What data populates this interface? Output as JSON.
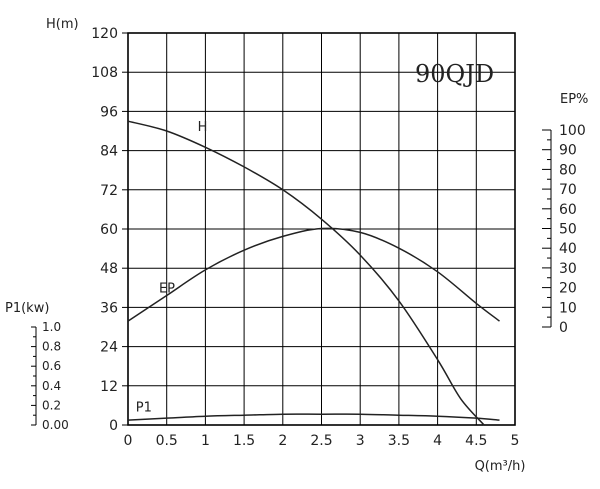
{
  "chart_data": {
    "type": "line",
    "title": "90QJD",
    "xlabel": "Q(m³/h)",
    "x_ticks": [
      "0",
      "0.5",
      "1",
      "1.5",
      "2",
      "2.5",
      "3",
      "3.5",
      "4",
      "4.5",
      "5"
    ],
    "xlim": [
      0,
      5
    ],
    "grid": true,
    "axes": {
      "head": {
        "label": "H(m)",
        "ylim": [
          0,
          120
        ],
        "ticks": [
          "0",
          "12",
          "24",
          "36",
          "48",
          "60",
          "72",
          "84",
          "96",
          "108",
          "120"
        ]
      },
      "efficiency": {
        "label": "EP%",
        "ylim": [
          0,
          100
        ],
        "ticks": [
          "0",
          "10",
          "20",
          "30",
          "40",
          "50",
          "60",
          "70",
          "80",
          "90",
          "100"
        ]
      },
      "power": {
        "label": "P1(kw)",
        "ylim": [
          0,
          1.0
        ],
        "ticks": [
          "0.00",
          "0.2",
          "0.4",
          "0.6",
          "0.8",
          "1.0"
        ]
      }
    },
    "series": [
      {
        "name": "H",
        "axis": "head",
        "x": [
          0,
          0.5,
          1.0,
          1.5,
          2.0,
          2.5,
          3.0,
          3.5,
          4.0,
          4.3,
          4.6
        ],
        "y": [
          93,
          90,
          85,
          79,
          72,
          63,
          52,
          38,
          20,
          8,
          0
        ]
      },
      {
        "name": "EP",
        "axis": "efficiency",
        "x": [
          0,
          0.5,
          1.0,
          1.5,
          2.0,
          2.5,
          3.0,
          3.5,
          4.0,
          4.5,
          4.8
        ],
        "y": [
          3,
          16,
          29,
          39,
          46,
          50,
          48,
          40,
          28,
          12,
          3
        ]
      },
      {
        "name": "P1",
        "axis": "power",
        "x": [
          0,
          0.5,
          1.0,
          1.5,
          2.0,
          2.5,
          3.0,
          3.5,
          4.0,
          4.5,
          4.8
        ],
        "y": [
          0.05,
          0.07,
          0.09,
          0.1,
          0.11,
          0.11,
          0.11,
          0.1,
          0.09,
          0.07,
          0.05
        ]
      }
    ]
  }
}
